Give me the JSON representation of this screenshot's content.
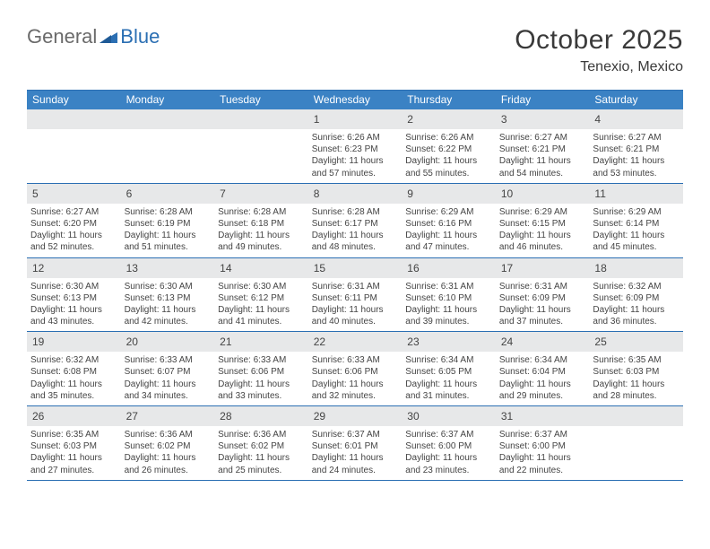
{
  "logo": {
    "general": "General",
    "blue": "Blue"
  },
  "title": "October 2025",
  "location": "Tenexio, Mexico",
  "colors": {
    "header_bg": "#3b82c4",
    "border": "#2b6fb3",
    "daynum_bg": "#e7e8e9",
    "text": "#444444",
    "logo_gray": "#6a6a6a",
    "logo_blue": "#2b6fb3",
    "page_bg": "#ffffff"
  },
  "day_labels": [
    "Sunday",
    "Monday",
    "Tuesday",
    "Wednesday",
    "Thursday",
    "Friday",
    "Saturday"
  ],
  "weeks": [
    [
      null,
      null,
      null,
      {
        "n": "1",
        "sr": "Sunrise: 6:26 AM",
        "ss": "Sunset: 6:23 PM",
        "d1": "Daylight: 11 hours",
        "d2": "and 57 minutes."
      },
      {
        "n": "2",
        "sr": "Sunrise: 6:26 AM",
        "ss": "Sunset: 6:22 PM",
        "d1": "Daylight: 11 hours",
        "d2": "and 55 minutes."
      },
      {
        "n": "3",
        "sr": "Sunrise: 6:27 AM",
        "ss": "Sunset: 6:21 PM",
        "d1": "Daylight: 11 hours",
        "d2": "and 54 minutes."
      },
      {
        "n": "4",
        "sr": "Sunrise: 6:27 AM",
        "ss": "Sunset: 6:21 PM",
        "d1": "Daylight: 11 hours",
        "d2": "and 53 minutes."
      }
    ],
    [
      {
        "n": "5",
        "sr": "Sunrise: 6:27 AM",
        "ss": "Sunset: 6:20 PM",
        "d1": "Daylight: 11 hours",
        "d2": "and 52 minutes."
      },
      {
        "n": "6",
        "sr": "Sunrise: 6:28 AM",
        "ss": "Sunset: 6:19 PM",
        "d1": "Daylight: 11 hours",
        "d2": "and 51 minutes."
      },
      {
        "n": "7",
        "sr": "Sunrise: 6:28 AM",
        "ss": "Sunset: 6:18 PM",
        "d1": "Daylight: 11 hours",
        "d2": "and 49 minutes."
      },
      {
        "n": "8",
        "sr": "Sunrise: 6:28 AM",
        "ss": "Sunset: 6:17 PM",
        "d1": "Daylight: 11 hours",
        "d2": "and 48 minutes."
      },
      {
        "n": "9",
        "sr": "Sunrise: 6:29 AM",
        "ss": "Sunset: 6:16 PM",
        "d1": "Daylight: 11 hours",
        "d2": "and 47 minutes."
      },
      {
        "n": "10",
        "sr": "Sunrise: 6:29 AM",
        "ss": "Sunset: 6:15 PM",
        "d1": "Daylight: 11 hours",
        "d2": "and 46 minutes."
      },
      {
        "n": "11",
        "sr": "Sunrise: 6:29 AM",
        "ss": "Sunset: 6:14 PM",
        "d1": "Daylight: 11 hours",
        "d2": "and 45 minutes."
      }
    ],
    [
      {
        "n": "12",
        "sr": "Sunrise: 6:30 AM",
        "ss": "Sunset: 6:13 PM",
        "d1": "Daylight: 11 hours",
        "d2": "and 43 minutes."
      },
      {
        "n": "13",
        "sr": "Sunrise: 6:30 AM",
        "ss": "Sunset: 6:13 PM",
        "d1": "Daylight: 11 hours",
        "d2": "and 42 minutes."
      },
      {
        "n": "14",
        "sr": "Sunrise: 6:30 AM",
        "ss": "Sunset: 6:12 PM",
        "d1": "Daylight: 11 hours",
        "d2": "and 41 minutes."
      },
      {
        "n": "15",
        "sr": "Sunrise: 6:31 AM",
        "ss": "Sunset: 6:11 PM",
        "d1": "Daylight: 11 hours",
        "d2": "and 40 minutes."
      },
      {
        "n": "16",
        "sr": "Sunrise: 6:31 AM",
        "ss": "Sunset: 6:10 PM",
        "d1": "Daylight: 11 hours",
        "d2": "and 39 minutes."
      },
      {
        "n": "17",
        "sr": "Sunrise: 6:31 AM",
        "ss": "Sunset: 6:09 PM",
        "d1": "Daylight: 11 hours",
        "d2": "and 37 minutes."
      },
      {
        "n": "18",
        "sr": "Sunrise: 6:32 AM",
        "ss": "Sunset: 6:09 PM",
        "d1": "Daylight: 11 hours",
        "d2": "and 36 minutes."
      }
    ],
    [
      {
        "n": "19",
        "sr": "Sunrise: 6:32 AM",
        "ss": "Sunset: 6:08 PM",
        "d1": "Daylight: 11 hours",
        "d2": "and 35 minutes."
      },
      {
        "n": "20",
        "sr": "Sunrise: 6:33 AM",
        "ss": "Sunset: 6:07 PM",
        "d1": "Daylight: 11 hours",
        "d2": "and 34 minutes."
      },
      {
        "n": "21",
        "sr": "Sunrise: 6:33 AM",
        "ss": "Sunset: 6:06 PM",
        "d1": "Daylight: 11 hours",
        "d2": "and 33 minutes."
      },
      {
        "n": "22",
        "sr": "Sunrise: 6:33 AM",
        "ss": "Sunset: 6:06 PM",
        "d1": "Daylight: 11 hours",
        "d2": "and 32 minutes."
      },
      {
        "n": "23",
        "sr": "Sunrise: 6:34 AM",
        "ss": "Sunset: 6:05 PM",
        "d1": "Daylight: 11 hours",
        "d2": "and 31 minutes."
      },
      {
        "n": "24",
        "sr": "Sunrise: 6:34 AM",
        "ss": "Sunset: 6:04 PM",
        "d1": "Daylight: 11 hours",
        "d2": "and 29 minutes."
      },
      {
        "n": "25",
        "sr": "Sunrise: 6:35 AM",
        "ss": "Sunset: 6:03 PM",
        "d1": "Daylight: 11 hours",
        "d2": "and 28 minutes."
      }
    ],
    [
      {
        "n": "26",
        "sr": "Sunrise: 6:35 AM",
        "ss": "Sunset: 6:03 PM",
        "d1": "Daylight: 11 hours",
        "d2": "and 27 minutes."
      },
      {
        "n": "27",
        "sr": "Sunrise: 6:36 AM",
        "ss": "Sunset: 6:02 PM",
        "d1": "Daylight: 11 hours",
        "d2": "and 26 minutes."
      },
      {
        "n": "28",
        "sr": "Sunrise: 6:36 AM",
        "ss": "Sunset: 6:02 PM",
        "d1": "Daylight: 11 hours",
        "d2": "and 25 minutes."
      },
      {
        "n": "29",
        "sr": "Sunrise: 6:37 AM",
        "ss": "Sunset: 6:01 PM",
        "d1": "Daylight: 11 hours",
        "d2": "and 24 minutes."
      },
      {
        "n": "30",
        "sr": "Sunrise: 6:37 AM",
        "ss": "Sunset: 6:00 PM",
        "d1": "Daylight: 11 hours",
        "d2": "and 23 minutes."
      },
      {
        "n": "31",
        "sr": "Sunrise: 6:37 AM",
        "ss": "Sunset: 6:00 PM",
        "d1": "Daylight: 11 hours",
        "d2": "and 22 minutes."
      },
      null
    ]
  ]
}
